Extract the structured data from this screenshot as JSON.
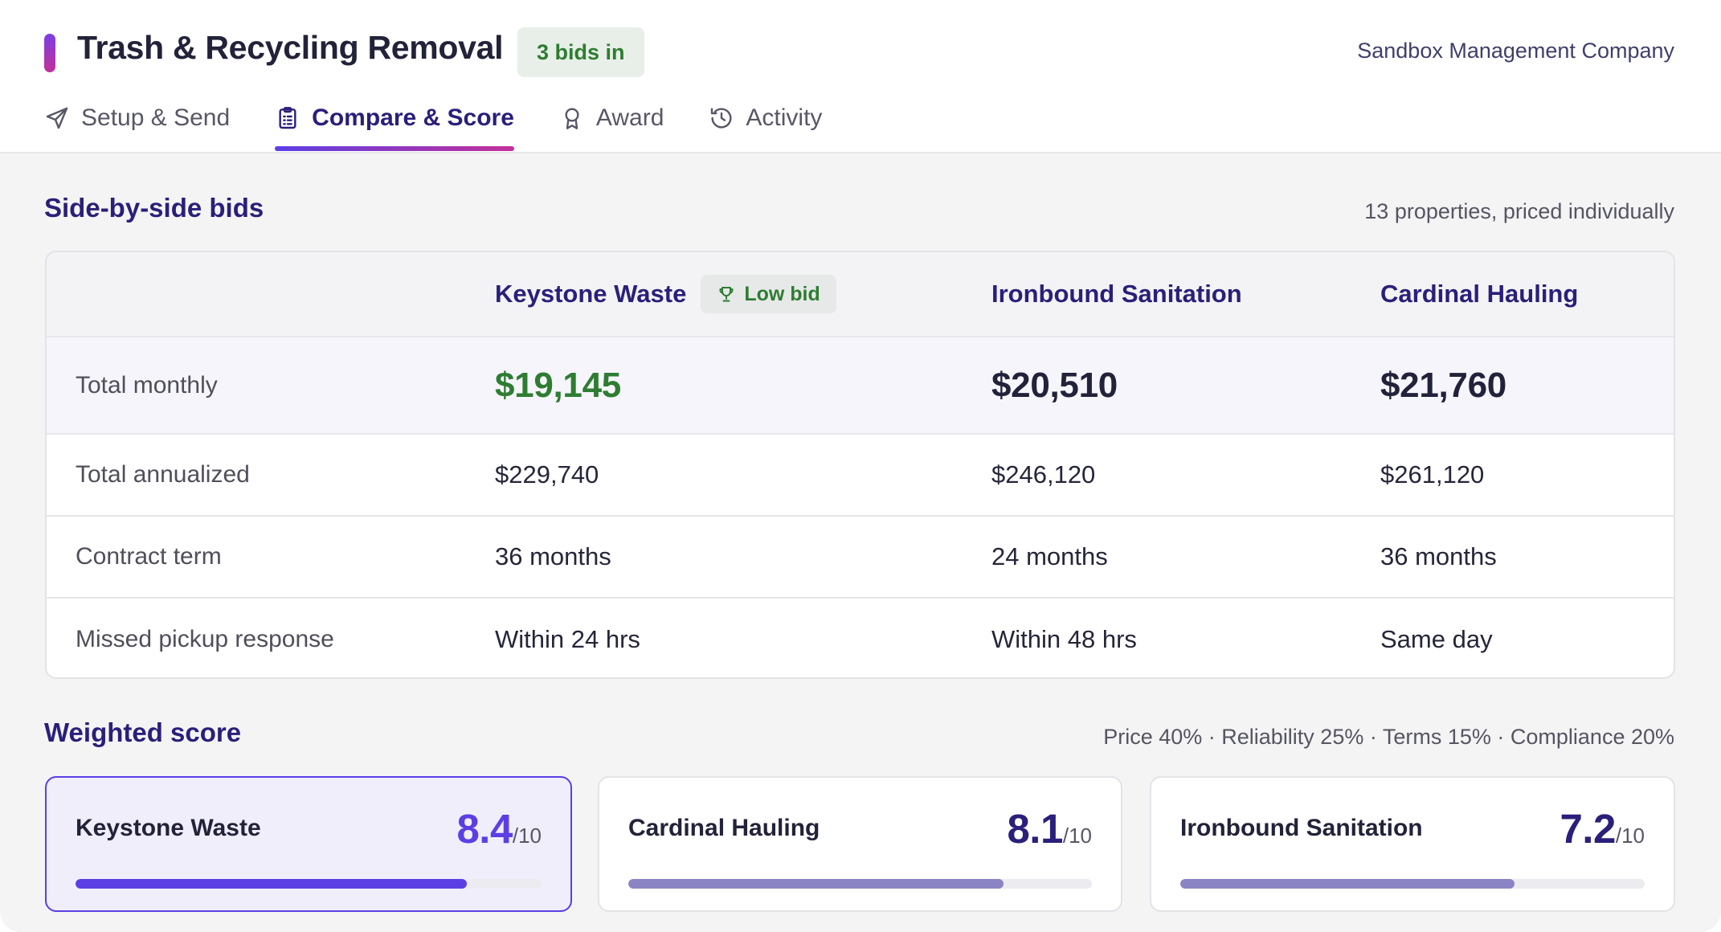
{
  "header": {
    "title": "Trash & Recycling Removal",
    "bids_badge": "3 bids in",
    "company": "Sandbox Management Company",
    "accent_color": "#7b3fe4"
  },
  "tabs": [
    {
      "label": "Setup & Send",
      "icon": "send-icon",
      "active": false
    },
    {
      "label": "Compare & Score",
      "icon": "clipboard-icon",
      "active": true
    },
    {
      "label": "Award",
      "icon": "award-icon",
      "active": false
    },
    {
      "label": "Activity",
      "icon": "history-icon",
      "active": false
    }
  ],
  "bids_section": {
    "title": "Side-by-side bids",
    "note": "13 properties, priced individually",
    "vendors": [
      "Keystone Waste",
      "Ironbound Sanitation",
      "Cardinal Hauling"
    ],
    "low_bid_badge": "Low bid",
    "rows": [
      {
        "label": "Total monthly",
        "values": [
          "$19,145",
          "$20,510",
          "$21,760"
        ]
      },
      {
        "label": "Total annualized",
        "values": [
          "$229,740",
          "$246,120",
          "$261,120"
        ]
      },
      {
        "label": "Contract term",
        "values": [
          "36 months",
          "24 months",
          "36 months"
        ]
      },
      {
        "label": "Missed pickup response",
        "values": [
          "Within 24 hrs",
          "Within 48 hrs",
          "Same day"
        ]
      }
    ],
    "low_bid_color": "#2e7d32"
  },
  "score_section": {
    "title": "Weighted score",
    "weights": "Price 40% · Reliability 25% · Terms 15% · Compliance 20%",
    "denominator": "/10",
    "cards": [
      {
        "name": "Keystone Waste",
        "score": "8.4",
        "fraction": 0.84,
        "leader": true
      },
      {
        "name": "Cardinal Hauling",
        "score": "8.1",
        "fraction": 0.81,
        "leader": false
      },
      {
        "name": "Ironbound Sanitation",
        "score": "7.2",
        "fraction": 0.72,
        "leader": false
      }
    ],
    "leader_color": "#5b3fe4",
    "bar_color": "#8b84c4"
  }
}
